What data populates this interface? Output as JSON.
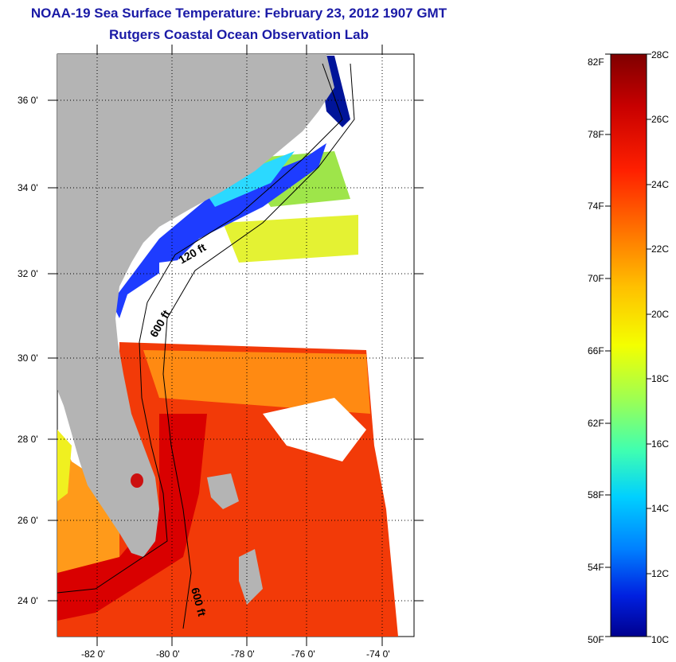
{
  "header": {
    "title": "NOAA-19 Sea Surface Temperature:  February 23, 2012 1907 GMT",
    "subtitle": "Rutgers Coastal Ocean Observation Lab"
  },
  "map": {
    "lon_range": [
      -83.0,
      -72.6
    ],
    "lat_range": [
      23.0,
      37.1
    ],
    "x_ticks": [
      "-82 0'",
      "-80 0'",
      "-78 0'",
      "-76 0'",
      "-74 0'"
    ],
    "y_ticks": [
      "36 0'",
      "34 0'",
      "32 0'",
      "30 0'",
      "28 0'",
      "26 0'",
      "24 0'"
    ],
    "contours": [
      "120 ft",
      "600 ft",
      "600 ft"
    ],
    "colors": {
      "land": "#b4b4b4",
      "cloud_no_data": "#ffffff"
    }
  },
  "colorbar": {
    "fahrenheit": [
      "82F",
      "78F",
      "74F",
      "70F",
      "66F",
      "62F",
      "58F",
      "54F",
      "50F"
    ],
    "celsius": [
      "28C",
      "26C",
      "24C",
      "22C",
      "20C",
      "18C",
      "16C",
      "14C",
      "12C",
      "10C"
    ],
    "gradient": [
      "#7f0000",
      "#c80000",
      "#ff2000",
      "#ff7000",
      "#ffc000",
      "#f4ff00",
      "#a0ff50",
      "#40ffb0",
      "#00d0ff",
      "#0080ff",
      "#0020e0",
      "#00008f"
    ]
  }
}
